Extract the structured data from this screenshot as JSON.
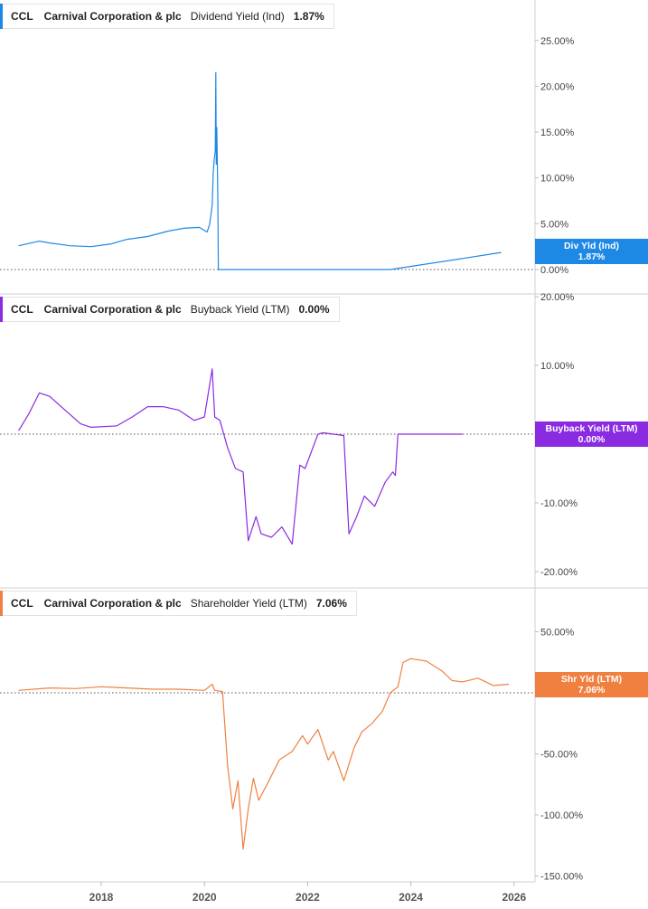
{
  "colors": {
    "div": "#1e88e5",
    "buyback": "#8a2be2",
    "shareholder": "#f08040"
  },
  "panels": [
    {
      "id": "div",
      "ticker": "CCL",
      "company": "Carnival Corporation & plc",
      "metric": "Dividend Yield (Ind)",
      "value": "1.87%",
      "tag_line1": "Div Yld (Ind)",
      "tag_line2": "1.87%"
    },
    {
      "id": "buyback",
      "ticker": "CCL",
      "company": "Carnival Corporation & plc",
      "metric": "Buyback Yield (LTM)",
      "value": "0.00%",
      "tag_line1": "Buyback Yield (LTM)",
      "tag_line2": "0.00%"
    },
    {
      "id": "shareholder",
      "ticker": "CCL",
      "company": "Carnival Corporation & plc",
      "metric": "Shareholder Yield (LTM)",
      "value": "7.06%",
      "tag_line1": "Shr Yld (LTM)",
      "tag_line2": "7.06%"
    }
  ],
  "x_ticks": [
    "2018",
    "2020",
    "2022",
    "2024",
    "2026"
  ],
  "chart_data": [
    {
      "type": "line",
      "title": "",
      "ylim": [
        0,
        29
      ],
      "ytick_values": [
        0,
        5,
        10,
        15,
        20,
        25
      ],
      "ytick_labels": [
        "0.00%",
        "5.00%",
        "10.00%",
        "15.00%",
        "20.00%",
        "25.00%"
      ],
      "series": [
        {
          "name": "Dividend Yield (Ind)",
          "x": [
            2016.4,
            2016.8,
            2017.0,
            2017.4,
            2017.8,
            2018.2,
            2018.5,
            2018.9,
            2019.3,
            2019.6,
            2019.9,
            2020.05,
            2020.1,
            2020.15,
            2020.17,
            2020.19,
            2020.21,
            2020.22,
            2020.23,
            2020.24,
            2020.26,
            2020.27,
            2023.0,
            2023.6,
            2025.0,
            2025.75
          ],
          "y": [
            2.6,
            3.1,
            2.9,
            2.6,
            2.5,
            2.8,
            3.3,
            3.6,
            4.2,
            4.5,
            4.6,
            4.1,
            4.9,
            7.0,
            10.5,
            12.0,
            13.0,
            21.5,
            11.5,
            15.5,
            8.0,
            0.0,
            0.0,
            0.0,
            1.2,
            1.87
          ]
        }
      ]
    },
    {
      "type": "line",
      "title": "",
      "ylim": [
        -23,
        20
      ],
      "ytick_values": [
        20,
        10,
        -10,
        -20
      ],
      "ytick_labels": [
        "20.00%",
        "10.00%",
        "-10.00%",
        "-20.00%"
      ],
      "series": [
        {
          "name": "Buyback Yield (LTM)",
          "x": [
            2016.4,
            2016.6,
            2016.8,
            2017.0,
            2017.3,
            2017.6,
            2017.8,
            2018.3,
            2018.6,
            2018.9,
            2019.2,
            2019.5,
            2019.8,
            2020.0,
            2020.15,
            2020.2,
            2020.3,
            2020.45,
            2020.6,
            2020.75,
            2020.85,
            2021.0,
            2021.1,
            2021.3,
            2021.5,
            2021.7,
            2021.85,
            2021.95,
            2022.0,
            2022.2,
            2022.3,
            2022.7,
            2022.8,
            2022.95,
            2023.1,
            2023.3,
            2023.5,
            2023.65,
            2023.7,
            2023.75,
            2024.0,
            2024.5,
            2025.0
          ],
          "y": [
            0.5,
            3.0,
            6.0,
            5.5,
            3.5,
            1.5,
            1.0,
            1.2,
            2.5,
            4.0,
            4.0,
            3.5,
            2.0,
            2.5,
            9.5,
            2.5,
            2.0,
            -2.0,
            -5.0,
            -5.5,
            -15.5,
            -12.0,
            -14.5,
            -15.0,
            -13.5,
            -16.0,
            -4.5,
            -5.0,
            -4.0,
            0.0,
            0.2,
            -0.2,
            -14.5,
            -12.0,
            -9.0,
            -10.5,
            -7.0,
            -5.5,
            -6.0,
            0.0,
            0.0,
            0.0,
            0.0
          ]
        }
      ]
    },
    {
      "type": "line",
      "title": "",
      "ylim": [
        -155,
        70
      ],
      "ytick_values": [
        50,
        0,
        -50,
        -100,
        -150
      ],
      "ytick_labels": [
        "50.00%",
        "0.00%",
        "-50.00%",
        "-100.00%",
        "-150.00%"
      ],
      "series": [
        {
          "name": "Shareholder Yield (LTM)",
          "x": [
            2016.4,
            2017.0,
            2017.5,
            2018.0,
            2018.5,
            2019.0,
            2019.5,
            2020.0,
            2020.15,
            2020.2,
            2020.35,
            2020.45,
            2020.55,
            2020.65,
            2020.75,
            2020.85,
            2020.95,
            2021.05,
            2021.25,
            2021.45,
            2021.7,
            2021.9,
            2022.0,
            2022.2,
            2022.4,
            2022.5,
            2022.7,
            2022.9,
            2023.05,
            2023.25,
            2023.45,
            2023.6,
            2023.75,
            2023.85,
            2024.0,
            2024.3,
            2024.6,
            2024.8,
            2025.0,
            2025.3,
            2025.6,
            2025.9
          ],
          "y": [
            2.0,
            4.0,
            3.5,
            5.0,
            4.0,
            3.0,
            3.0,
            2.0,
            7.0,
            2.0,
            1.0,
            -60.0,
            -95.0,
            -72.0,
            -128.0,
            -95.0,
            -70.0,
            -88.0,
            -72.0,
            -55.0,
            -48.0,
            -35.0,
            -42.0,
            -30.0,
            -55.0,
            -48.0,
            -72.0,
            -45.0,
            -32.0,
            -25.0,
            -15.0,
            0.0,
            5.0,
            25.0,
            28.0,
            26.0,
            18.0,
            10.0,
            9.0,
            12.0,
            6.0,
            7.06
          ]
        }
      ]
    }
  ]
}
